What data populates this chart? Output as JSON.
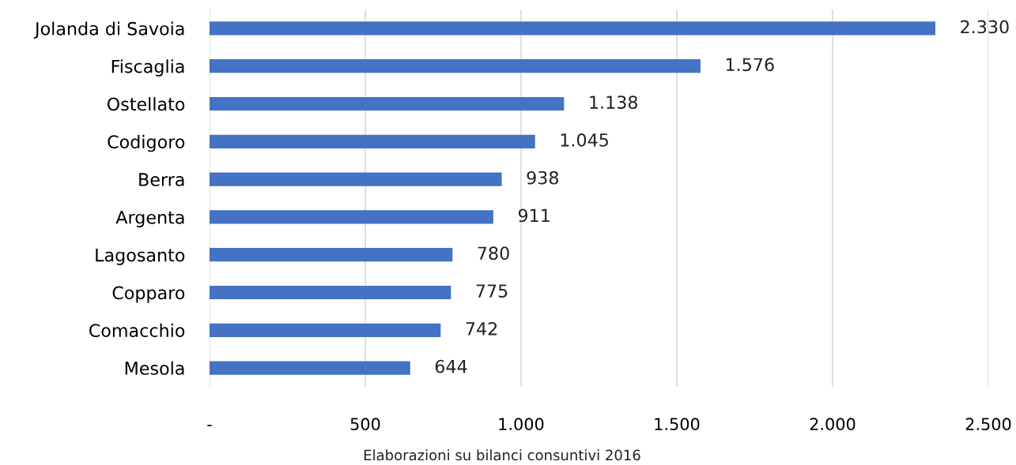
{
  "chart_data": {
    "type": "bar",
    "orientation": "horizontal",
    "categories": [
      "Jolanda di Savoia",
      "Fiscaglia",
      "Ostellato",
      "Codigoro",
      "Berra",
      "Argenta",
      "Lagosanto",
      "Copparo",
      "Comacchio",
      "Mesola"
    ],
    "values": [
      2330,
      1576,
      1138,
      1045,
      938,
      911,
      780,
      775,
      742,
      644
    ],
    "value_labels": [
      "2.330",
      "1.576",
      "1.138",
      "1.045",
      "938",
      "911",
      "780",
      "775",
      "742",
      "644"
    ],
    "color": "#4472c4",
    "xlim": [
      0,
      2500
    ],
    "xticks": [
      {
        "value": 0,
        "label": "-"
      },
      500,
      {
        "value": 1000,
        "label": "1.000"
      },
      {
        "value": 1500,
        "label": "1.500"
      },
      {
        "value": 2000,
        "label": "2.000"
      },
      {
        "value": 2500,
        "label": "2.500"
      }
    ],
    "grid": "x",
    "legend": false,
    "annotations": [
      "Elaborazioni su bilanci consuntivi 2016"
    ]
  }
}
